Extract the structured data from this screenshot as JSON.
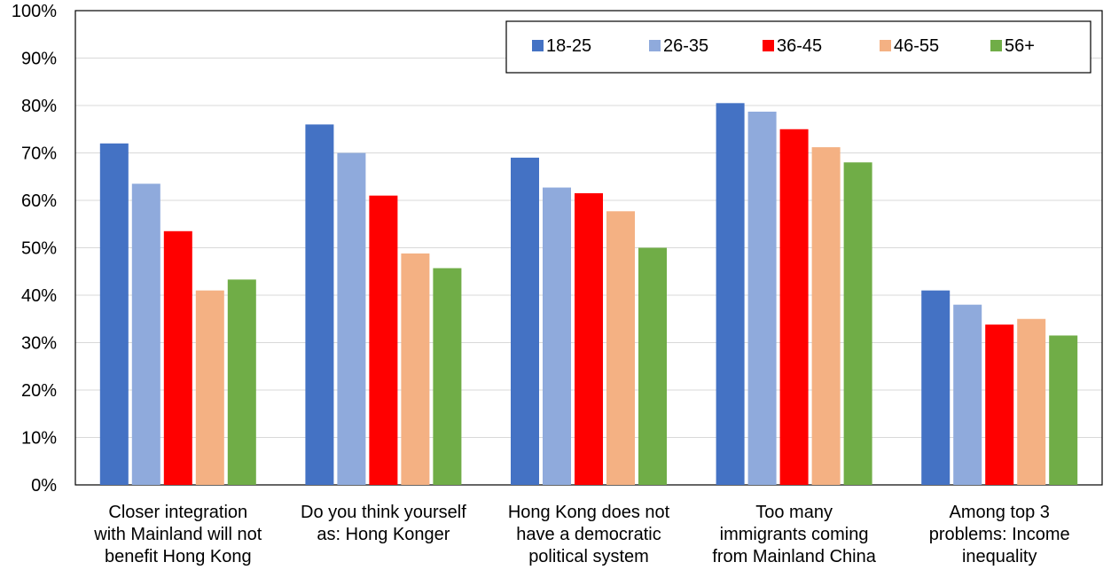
{
  "chart_data": {
    "type": "bar",
    "title": "",
    "xlabel": "",
    "ylabel": "",
    "ylim": [
      0,
      100
    ],
    "yticks": [
      "0%",
      "10%",
      "20%",
      "30%",
      "40%",
      "50%",
      "60%",
      "70%",
      "80%",
      "90%",
      "100%"
    ],
    "grid": true,
    "legend_position": "top-right",
    "categories": [
      [
        "Closer integration",
        "with Mainland will not",
        "benefit Hong Kong"
      ],
      [
        "Do you think yourself",
        "as: Hong Konger"
      ],
      [
        "Hong Kong does not",
        "have a democratic",
        "political system"
      ],
      [
        "Too many",
        "immigrants coming",
        "from Mainland China"
      ],
      [
        "Among top 3",
        "problems: Income",
        "inequality"
      ]
    ],
    "series": [
      {
        "name": "18-25",
        "color": "#4472C4",
        "values": [
          72,
          76,
          69,
          80.5,
          41
        ]
      },
      {
        "name": "26-35",
        "color": "#8FAADC",
        "values": [
          63.5,
          70,
          62.7,
          78.7,
          38
        ]
      },
      {
        "name": "36-45",
        "color": "#FF0000",
        "values": [
          53.5,
          61,
          61.5,
          75,
          33.8
        ]
      },
      {
        "name": "46-55",
        "color": "#F4B183",
        "values": [
          41,
          48.8,
          57.7,
          71.2,
          35
        ]
      },
      {
        "name": "56+",
        "color": "#70AD47",
        "values": [
          43.3,
          45.7,
          50,
          68,
          31.5
        ]
      }
    ]
  }
}
